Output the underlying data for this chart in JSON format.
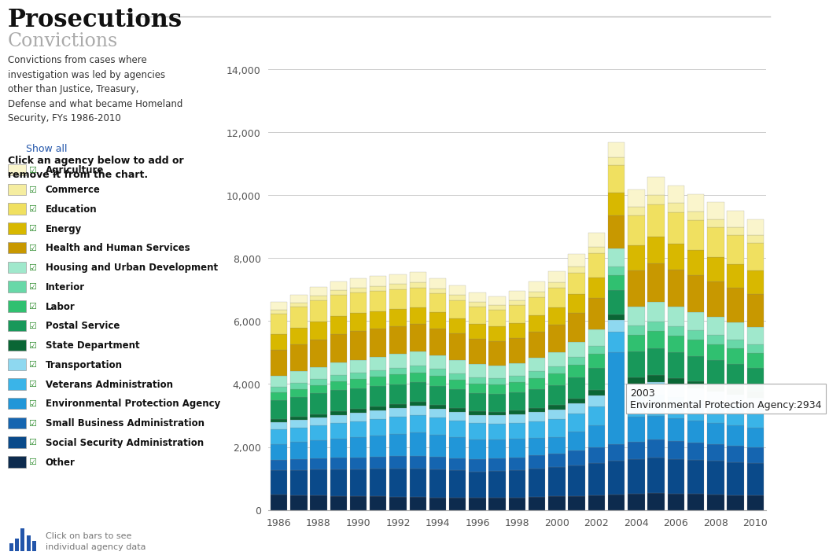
{
  "years": [
    1986,
    1987,
    1988,
    1989,
    1990,
    1991,
    1992,
    1993,
    1994,
    1995,
    1996,
    1997,
    1998,
    1999,
    2000,
    2001,
    2002,
    2003,
    2004,
    2005,
    2006,
    2007,
    2008,
    2009,
    2010
  ],
  "series_order": [
    "Other",
    "Social Security Administration",
    "Small Business Administration",
    "Environmental Protection Agency",
    "Veterans Administration",
    "Transportation",
    "State Department",
    "Postal Service",
    "Labor",
    "Interior",
    "Housing and Urban Development",
    "Health and Human Services",
    "Energy",
    "Education",
    "Commerce",
    "Agriculture"
  ],
  "series": {
    "Other": [
      480,
      470,
      460,
      450,
      440,
      430,
      420,
      410,
      400,
      390,
      380,
      390,
      400,
      415,
      430,
      450,
      475,
      500,
      520,
      535,
      520,
      505,
      490,
      475,
      460
    ],
    "Social Security Administration": [
      780,
      800,
      820,
      840,
      860,
      875,
      890,
      900,
      885,
      865,
      845,
      855,
      870,
      895,
      925,
      965,
      1005,
      1055,
      1100,
      1125,
      1105,
      1085,
      1065,
      1045,
      1025
    ],
    "Small Business Administration": [
      320,
      335,
      350,
      365,
      375,
      385,
      395,
      410,
      400,
      390,
      380,
      390,
      405,
      425,
      445,
      470,
      498,
      525,
      552,
      568,
      554,
      540,
      526,
      512,
      498
    ],
    "Environmental Protection Agency": [
      520,
      545,
      575,
      605,
      635,
      675,
      710,
      735,
      705,
      670,
      638,
      610,
      580,
      553,
      524,
      590,
      700,
      2934,
      780,
      755,
      730,
      705,
      680,
      655,
      630
    ],
    "Veterans Administration": [
      460,
      474,
      488,
      502,
      514,
      526,
      538,
      552,
      538,
      524,
      510,
      496,
      510,
      534,
      558,
      586,
      614,
      644,
      674,
      690,
      674,
      658,
      642,
      626,
      610
    ],
    "Transportation": [
      230,
      240,
      250,
      260,
      268,
      276,
      284,
      294,
      286,
      278,
      270,
      262,
      270,
      285,
      300,
      318,
      340,
      365,
      385,
      397,
      387,
      377,
      367,
      357,
      347
    ],
    "State Department": [
      95,
      100,
      106,
      112,
      117,
      122,
      127,
      133,
      128,
      123,
      118,
      113,
      119,
      130,
      142,
      156,
      172,
      190,
      208,
      220,
      214,
      208,
      202,
      196,
      190
    ],
    "Postal Service": [
      600,
      625,
      650,
      665,
      653,
      641,
      629,
      617,
      605,
      593,
      581,
      569,
      583,
      609,
      637,
      672,
      716,
      764,
      812,
      836,
      818,
      800,
      782,
      764,
      746
    ],
    "Labor": [
      240,
      252,
      264,
      276,
      286,
      296,
      306,
      318,
      308,
      298,
      288,
      298,
      312,
      337,
      362,
      396,
      434,
      476,
      520,
      553,
      538,
      523,
      508,
      493,
      478
    ],
    "Interior": [
      180,
      187,
      194,
      201,
      207,
      213,
      219,
      225,
      219,
      213,
      207,
      201,
      207,
      219,
      231,
      246,
      264,
      283,
      302,
      314,
      306,
      298,
      290,
      282,
      274
    ],
    "Housing and Urban Development": [
      360,
      374,
      388,
      402,
      414,
      426,
      438,
      450,
      438,
      426,
      414,
      402,
      414,
      436,
      460,
      488,
      522,
      560,
      600,
      624,
      608,
      592,
      576,
      560,
      544
    ],
    "Health and Human Services": [
      820,
      848,
      876,
      904,
      920,
      904,
      888,
      872,
      854,
      830,
      806,
      782,
      798,
      832,
      874,
      924,
      990,
      1070,
      1154,
      1218,
      1188,
      1158,
      1128,
      1098,
      1068
    ],
    "Energy": [
      510,
      532,
      554,
      572,
      560,
      548,
      536,
      524,
      510,
      492,
      474,
      460,
      476,
      504,
      540,
      586,
      646,
      720,
      798,
      848,
      824,
      800,
      776,
      752,
      728
    ],
    "Education": [
      640,
      666,
      686,
      672,
      658,
      644,
      630,
      616,
      600,
      576,
      552,
      538,
      556,
      590,
      634,
      692,
      768,
      858,
      952,
      1024,
      996,
      968,
      940,
      912,
      884
    ],
    "Commerce": [
      128,
      134,
      140,
      146,
      152,
      158,
      164,
      170,
      164,
      158,
      152,
      146,
      154,
      167,
      181,
      199,
      221,
      247,
      274,
      291,
      283,
      275,
      267,
      259,
      251
    ],
    "Agriculture": [
      250,
      262,
      274,
      286,
      296,
      306,
      316,
      326,
      314,
      302,
      290,
      278,
      292,
      317,
      344,
      381,
      430,
      485,
      542,
      582,
      566,
      550,
      534,
      518,
      502
    ]
  },
  "colors": {
    "Other": "#0d2b4e",
    "Social Security Administration": "#0a4a8a",
    "Small Business Administration": "#1565b0",
    "Environmental Protection Agency": "#2196d8",
    "Veterans Administration": "#3ab4e8",
    "Transportation": "#8ed8f0",
    "State Department": "#0a6635",
    "Postal Service": "#18985a",
    "Labor": "#30c070",
    "Interior": "#68d8a8",
    "Housing and Urban Development": "#a0e8cc",
    "Health and Human Services": "#c89800",
    "Energy": "#d8b800",
    "Education": "#f0e060",
    "Commerce": "#f5eda0",
    "Agriculture": "#faf5cc"
  },
  "title": "Prosecutions",
  "subtitle": "Convictions",
  "description_lines": [
    "Convictions from cases where",
    "investigation was led by agencies",
    "other than Justice, Treasury,",
    "Defense and what became Homeland",
    "Security, FYs 1986-2010"
  ],
  "ylim": [
    0,
    15000
  ],
  "yticks": [
    0,
    2000,
    4000,
    6000,
    8000,
    10000,
    12000,
    14000
  ],
  "background_color": "#ffffff",
  "tooltip_year": "2003",
  "tooltip_agency": "Environmental Protection Agency",
  "tooltip_value": "2934",
  "click_text": "Click an agency below to add or\nremove it from the chart.",
  "show_all_text": "Show all",
  "footer_text": "Click on bars to see\nindividual agency data",
  "legend_order": [
    "Agriculture",
    "Commerce",
    "Education",
    "Energy",
    "Health and Human Services",
    "Housing and Urban Development",
    "Interior",
    "Labor",
    "Postal Service",
    "State Department",
    "Transportation",
    "Veterans Administration",
    "Environmental Protection Agency",
    "Small Business Administration",
    "Social Security Administration",
    "Other"
  ]
}
